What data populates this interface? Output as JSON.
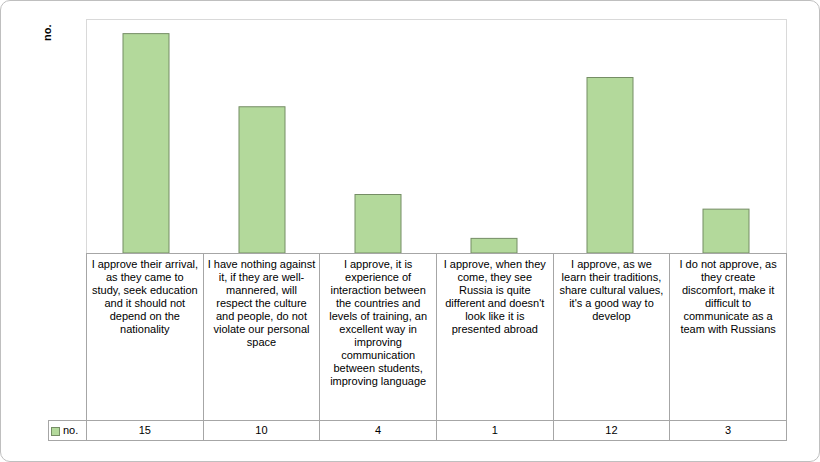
{
  "chart_data": {
    "type": "bar",
    "ylabel": "no.",
    "categories": [
      "I approve their arrival, as they came to study, seek education and it should not depend on the nationality",
      "I have nothing against it, if they are well-mannered, will respect the culture and people, do not violate our personal space",
      "I approve, it is experience of interaction between the countries and levels of training, an excellent way in improving communication between students, improving language",
      "I approve, when they come, they see Russia is quite different and doesn't look like it is presented abroad",
      "I approve, as we learn their traditions, share cultural values, it's a good way to develop",
      "I do not approve, as they create discomfort, make it difficult to communicate as a team with Russians"
    ],
    "series": [
      {
        "name": "no.",
        "color": "#b3d99b",
        "values": [
          15,
          10,
          4,
          1,
          12,
          3
        ]
      }
    ],
    "ylim": [
      0,
      16
    ],
    "tick_labels": "x",
    "data_labels": true,
    "grid": false,
    "legend": "bottom"
  }
}
